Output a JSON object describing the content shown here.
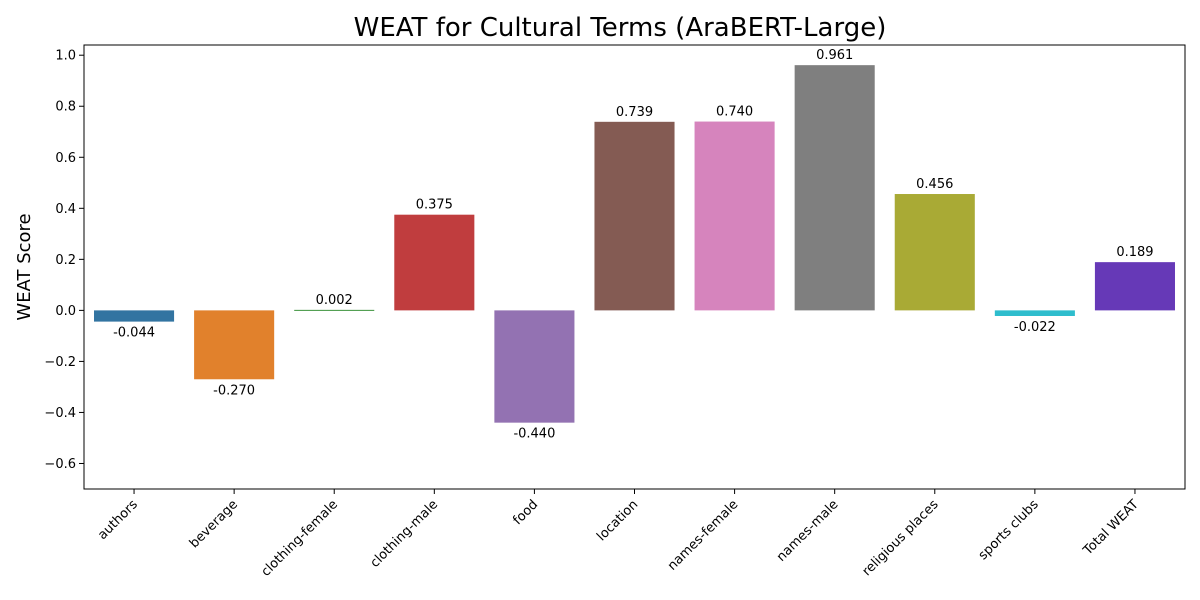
{
  "chart_data": {
    "type": "bar",
    "title": "WEAT for Cultural Terms (AraBERT-Large)",
    "xlabel": "",
    "ylabel": "WEAT Score",
    "ylim": [
      -0.7,
      1.04
    ],
    "yticks": [
      -0.6,
      -0.4,
      -0.2,
      0.0,
      0.2,
      0.4,
      0.6,
      0.8,
      1.0
    ],
    "ytick_labels": [
      "−0.6",
      "−0.4",
      "−0.2",
      "0.0",
      "0.2",
      "0.4",
      "0.6",
      "0.8",
      "1.0"
    ],
    "grid": false,
    "categories": [
      "authors",
      "beverage",
      "clothing-female",
      "clothing-male",
      "food",
      "location",
      "names-female",
      "names-male",
      "religious places",
      "sports clubs",
      "Total WEAT"
    ],
    "values": [
      -0.044,
      -0.27,
      0.002,
      0.375,
      -0.44,
      0.739,
      0.74,
      0.961,
      0.456,
      -0.022,
      0.189
    ],
    "value_labels": [
      "-0.044",
      "-0.270",
      "0.002",
      "0.375",
      "-0.440",
      "0.739",
      "0.740",
      "0.961",
      "0.456",
      "-0.022",
      "0.189"
    ],
    "colors": [
      "#3274a1",
      "#e1812c",
      "#3a923a",
      "#c03d3e",
      "#9372b2",
      "#845b53",
      "#d684bd",
      "#7f7f7f",
      "#a9aa35",
      "#2ebdcd",
      "#6639b7"
    ]
  }
}
